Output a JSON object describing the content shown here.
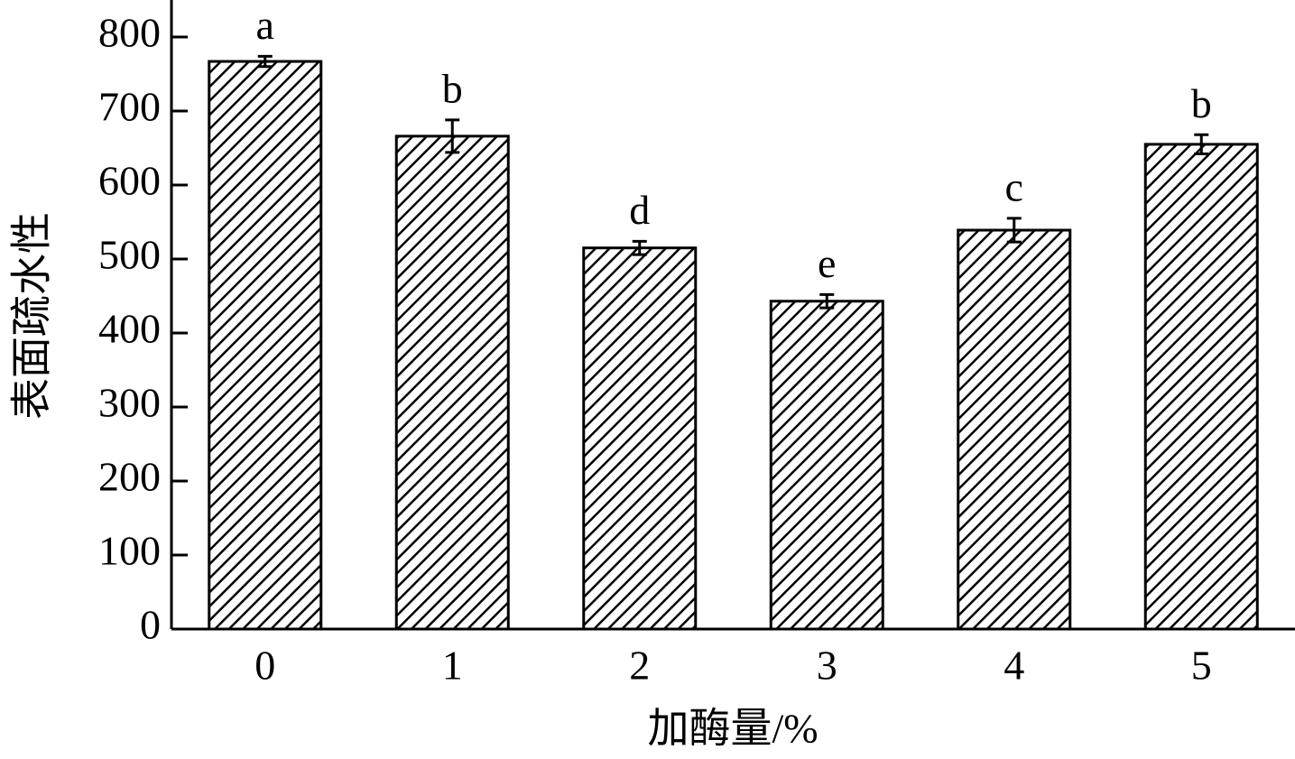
{
  "chart_data": {
    "type": "bar",
    "x_label": "加酶量/%",
    "y_label": "表面疏水性",
    "categories": [
      "0",
      "1",
      "2",
      "3",
      "4",
      "5"
    ],
    "values": [
      767,
      666,
      515,
      443,
      539,
      655
    ],
    "errors": [
      7,
      22,
      9,
      9,
      16,
      13
    ],
    "letters": [
      "a",
      "b",
      "d",
      "e",
      "c",
      "b"
    ],
    "color": "#000000",
    "ylim": [
      0,
      850
    ],
    "yticks": [
      0,
      100,
      200,
      300,
      400,
      500,
      600,
      700,
      800
    ]
  }
}
